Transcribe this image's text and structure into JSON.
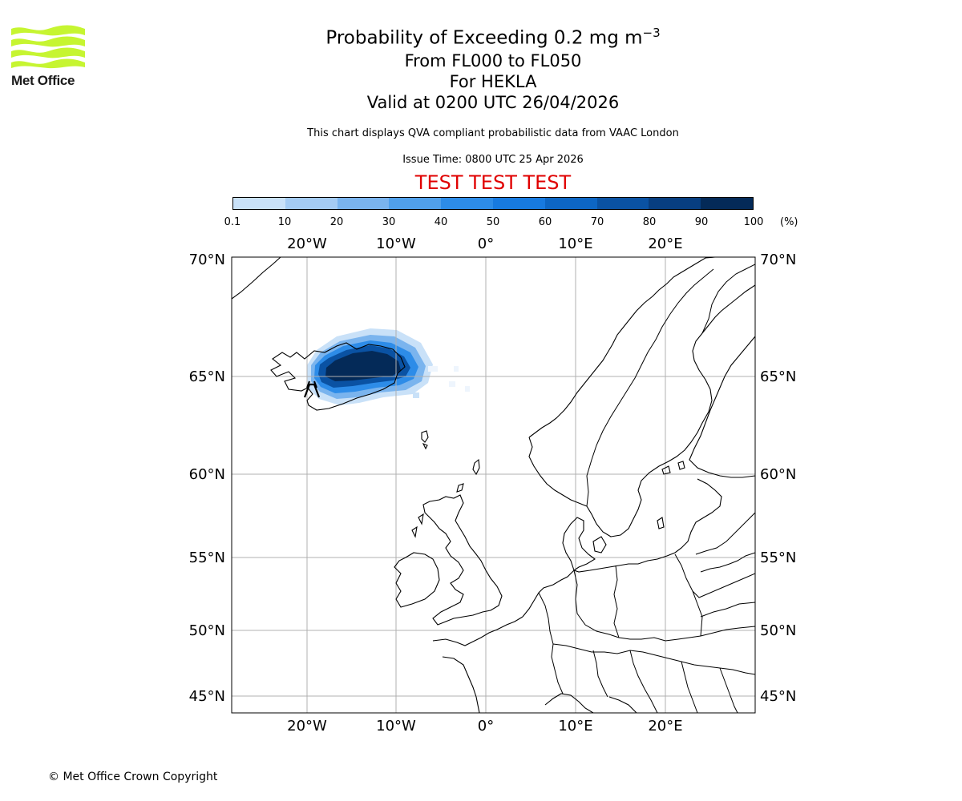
{
  "logo": {
    "text": "Met Office",
    "color": "#c6f531"
  },
  "title": {
    "main_prefix": "Probability of Exceeding 0.2 mg m",
    "main_sup": "−3",
    "levels": "From FL000 to FL050",
    "volcano": "For HEKLA",
    "valid": "Valid at 0200 UTC 26/04/2026",
    "description": "This chart displays QVA compliant probabilistic data from VAAC London",
    "issue_time": "Issue Time: 0800 UTC 25 Apr 2026",
    "test_banner": "TEST TEST TEST"
  },
  "colorbar": {
    "ticks": [
      "0.1",
      "10",
      "20",
      "30",
      "40",
      "50",
      "60",
      "70",
      "80",
      "90",
      "100"
    ],
    "unit": "(%)",
    "colors": [
      "#eef5fd",
      "#c9e1f8",
      "#a4cbf3",
      "#7ab4ee",
      "#50a0eb",
      "#2d8ce8",
      "#177ae0",
      "#0d66c4",
      "#0a52a3",
      "#073e80",
      "#042a58"
    ]
  },
  "map": {
    "lon_labels": [
      "20°W",
      "10°W",
      "0°",
      "10°E",
      "20°E"
    ],
    "lat_labels": [
      "70°N",
      "65°N",
      "60°N",
      "55°N",
      "50°N",
      "45°N"
    ],
    "volcano_marker": "volcano-icon"
  },
  "footer": {
    "copyright": "© Met Office Crown Copyright"
  }
}
